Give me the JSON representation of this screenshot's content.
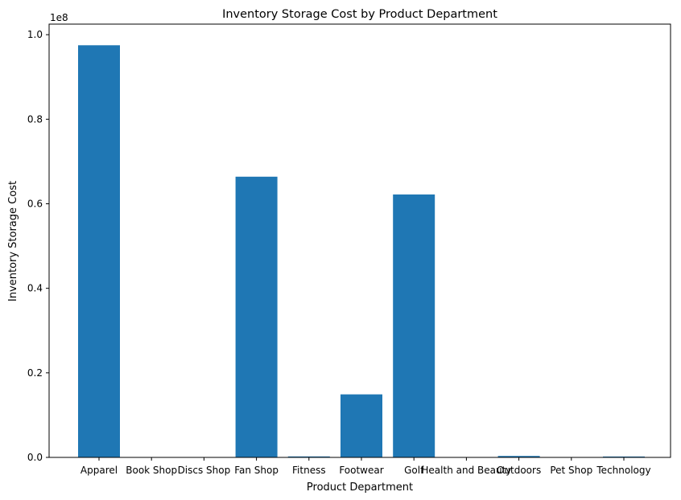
{
  "chart_data": {
    "type": "bar",
    "title": "Inventory Storage Cost by Product Department",
    "xlabel": "Product Department",
    "ylabel": "Inventory Storage Cost",
    "offset_label": "1e8",
    "categories": [
      "Apparel",
      "Book Shop",
      "Discs Shop",
      "Fan Shop",
      "Fitness",
      "Footwear",
      "Golf",
      "Health and Beauty",
      "Outdoors",
      "Pet Shop",
      "Technology"
    ],
    "values": [
      97500000,
      15000,
      18000,
      66400000,
      220000,
      14900000,
      62200000,
      10000,
      350000,
      12000,
      200000
    ],
    "ylim": [
      0,
      102500000
    ],
    "yticks": [
      0,
      20000000,
      40000000,
      60000000,
      80000000,
      100000000
    ],
    "ytick_labels": [
      "0.0",
      "0.2",
      "0.4",
      "0.6",
      "0.8",
      "1.0"
    ],
    "bar_color": "#1f77b4",
    "grid": false,
    "legend": "none"
  }
}
